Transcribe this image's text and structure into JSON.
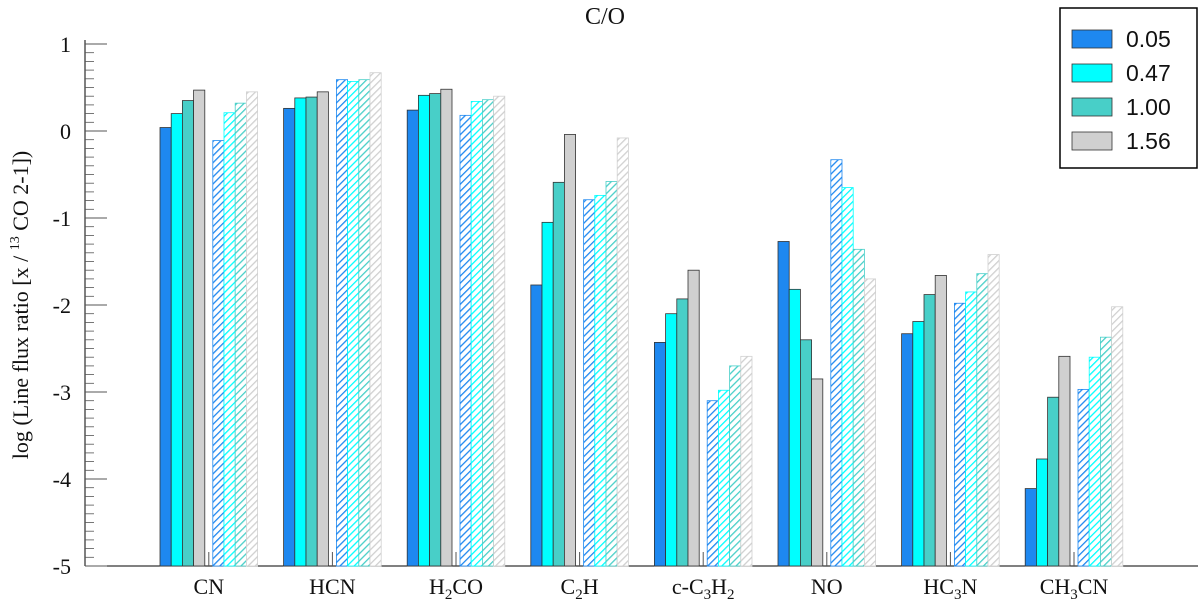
{
  "chart_data": {
    "type": "bar",
    "title": "C/O",
    "ylabel_parts": [
      "log (Line flux ratio [x / ",
      "13",
      " CO 2-1])"
    ],
    "ylim": [
      -5,
      1
    ],
    "yticks": [
      -5,
      -4,
      -3,
      -2,
      -1,
      0,
      1
    ],
    "ytick_labels": [
      "-5",
      "-4",
      "-3",
      "-2",
      "-1",
      "0",
      "1"
    ],
    "categories": [
      {
        "name": "CN",
        "label": [
          {
            "t": "CN"
          }
        ]
      },
      {
        "name": "HCN",
        "label": [
          {
            "t": "HCN"
          }
        ]
      },
      {
        "name": "H2CO",
        "label": [
          {
            "t": "H"
          },
          {
            "t": "2",
            "sub": true
          },
          {
            "t": "CO"
          }
        ]
      },
      {
        "name": "C2H",
        "label": [
          {
            "t": "C"
          },
          {
            "t": "2",
            "sub": true
          },
          {
            "t": "H"
          }
        ]
      },
      {
        "name": "c-C3H2",
        "label": [
          {
            "t": "c-C"
          },
          {
            "t": "3",
            "sub": true
          },
          {
            "t": "H"
          },
          {
            "t": "2",
            "sub": true
          }
        ]
      },
      {
        "name": "NO",
        "label": [
          {
            "t": "NO"
          }
        ]
      },
      {
        "name": "HC3N",
        "label": [
          {
            "t": "HC"
          },
          {
            "t": "3",
            "sub": true
          },
          {
            "t": "N"
          }
        ]
      },
      {
        "name": "CH3CN",
        "label": [
          {
            "t": "CH"
          },
          {
            "t": "3",
            "sub": true
          },
          {
            "t": "CN"
          }
        ]
      }
    ],
    "groups": [
      {
        "name": "solid",
        "style": "solid"
      },
      {
        "name": "hatched",
        "style": "hatched"
      }
    ],
    "series": [
      {
        "name": "0.05",
        "color": "#1e88f0",
        "solid": [
          0.04,
          0.26,
          0.24,
          -1.77,
          -2.43,
          -1.27,
          -2.33,
          -4.11
        ],
        "hatched": [
          -0.11,
          0.59,
          0.18,
          -0.79,
          -3.1,
          -0.33,
          -1.98,
          -2.97
        ]
      },
      {
        "name": "0.47",
        "color": "#00ffff",
        "solid": [
          0.2,
          0.38,
          0.41,
          -1.05,
          -2.1,
          -1.82,
          -2.19,
          -3.77
        ],
        "hatched": [
          0.21,
          0.57,
          0.34,
          -0.74,
          -2.98,
          -0.65,
          -1.85,
          -2.6
        ]
      },
      {
        "name": "1.00",
        "color": "#48cfc8",
        "solid": [
          0.35,
          0.39,
          0.43,
          -0.59,
          -1.93,
          -2.4,
          -1.88,
          -3.06
        ],
        "hatched": [
          0.32,
          0.59,
          0.36,
          -0.58,
          -2.7,
          -1.36,
          -1.64,
          -2.37
        ]
      },
      {
        "name": "1.56",
        "color": "#d0d0d0",
        "solid": [
          0.47,
          0.45,
          0.48,
          -0.04,
          -1.6,
          -2.85,
          -1.66,
          -2.59
        ],
        "hatched": [
          0.45,
          0.67,
          0.4,
          -0.08,
          -2.59,
          -1.7,
          -1.42,
          -2.02
        ]
      }
    ],
    "legend_position": "top-right"
  }
}
